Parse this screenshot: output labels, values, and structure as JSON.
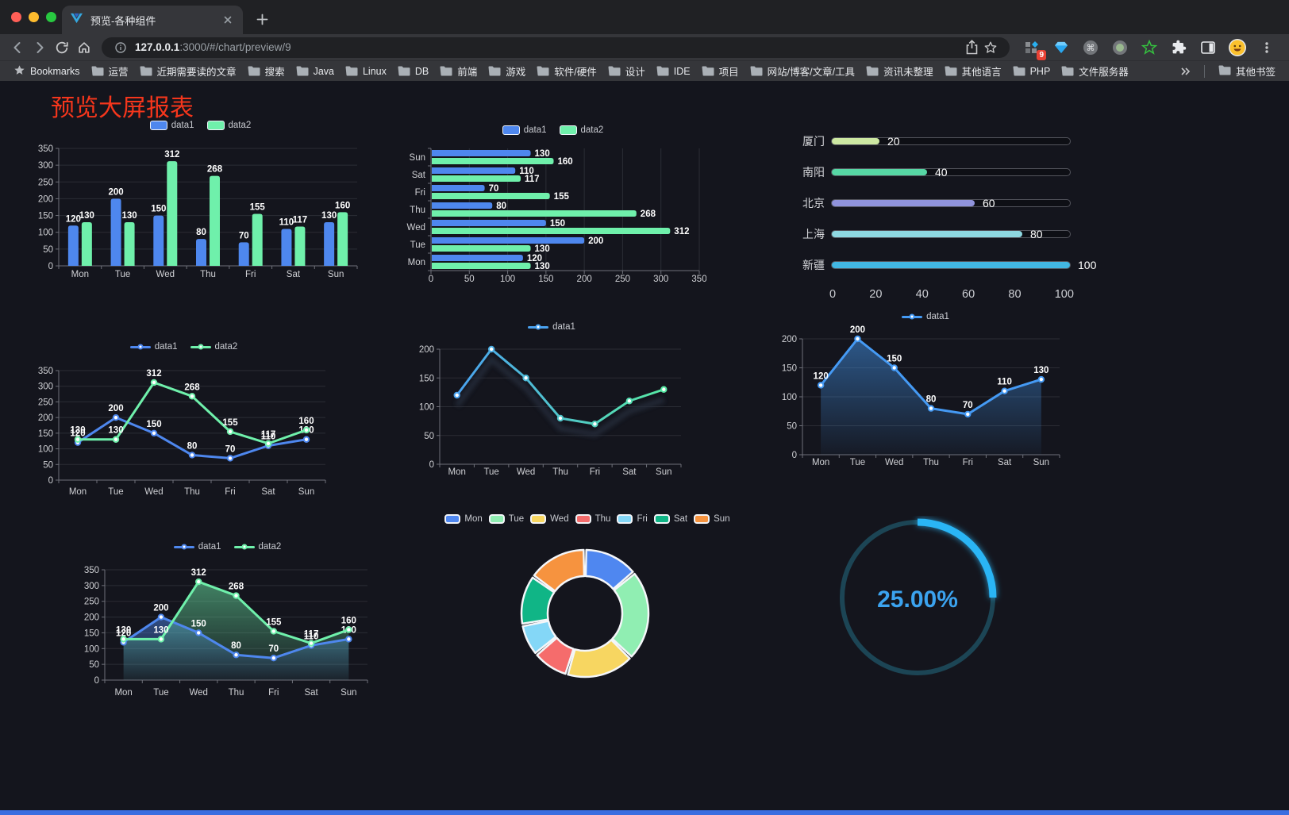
{
  "browser": {
    "tab": {
      "title": "预览-各种组件"
    },
    "url": {
      "host": "127.0.0.1",
      "rest": ":3000/#/chart/preview/9"
    },
    "extension_badge": "9",
    "bookmarks": {
      "label": "Bookmarks",
      "folders": [
        "运营",
        "近期需要读的文章",
        "搜索",
        "Java",
        "Linux",
        "DB",
        "前端",
        "游戏",
        "软件/硬件",
        "设计",
        "IDE",
        "项目",
        "网站/博客/文章/工具",
        "资讯未整理",
        "其他语言",
        "PHP",
        "文件服务器"
      ],
      "other": "其他书签"
    }
  },
  "page": {
    "title": "预览大屏报表",
    "title_color": "#f5361c",
    "background": "#14151d"
  },
  "chart_data": [
    {
      "id": "bar-vertical",
      "type": "bar",
      "categories": [
        "Mon",
        "Tue",
        "Wed",
        "Thu",
        "Fri",
        "Sat",
        "Sun"
      ],
      "series": [
        {
          "name": "data1",
          "color": "#4e87ee",
          "values": [
            120,
            200,
            150,
            80,
            70,
            110,
            130
          ]
        },
        {
          "name": "data2",
          "color": "#6ff0ab",
          "values": [
            130,
            130,
            312,
            268,
            155,
            117,
            160
          ]
        }
      ],
      "ylim": [
        0,
        350
      ],
      "ytick_step": 50,
      "legend_position": "top",
      "value_labels": true,
      "grid": true
    },
    {
      "id": "bar-horizontal",
      "type": "hbar",
      "categories": [
        "Mon",
        "Tue",
        "Wed",
        "Thu",
        "Fri",
        "Sat",
        "Sun"
      ],
      "series": [
        {
          "name": "data1",
          "color": "#4e87ee",
          "values": [
            120,
            200,
            150,
            80,
            70,
            110,
            130
          ]
        },
        {
          "name": "data2",
          "color": "#6ff0ab",
          "values": [
            130,
            130,
            312,
            268,
            155,
            117,
            160
          ]
        }
      ],
      "xlim": [
        0,
        350
      ],
      "xtick_step": 50,
      "legend_position": "top",
      "value_labels": true,
      "grid": true
    },
    {
      "id": "progress",
      "type": "progress",
      "items": [
        {
          "label": "厦门",
          "value": 20,
          "color": "#cde8a2"
        },
        {
          "label": "南阳",
          "value": 40,
          "color": "#57d7a5"
        },
        {
          "label": "北京",
          "value": 60,
          "color": "#9093dc"
        },
        {
          "label": "上海",
          "value": 80,
          "color": "#8ed8e1"
        },
        {
          "label": "新疆",
          "value": 100,
          "color": "#42b7e3"
        }
      ],
      "xlim": [
        0,
        100
      ],
      "xticks": [
        0,
        20,
        40,
        60,
        80,
        100
      ]
    },
    {
      "id": "line-basic",
      "type": "line",
      "categories": [
        "Mon",
        "Tue",
        "Wed",
        "Thu",
        "Fri",
        "Sat",
        "Sun"
      ],
      "series": [
        {
          "name": "data1",
          "color": "#4e87ee",
          "values": [
            120,
            200,
            150,
            80,
            70,
            110,
            130
          ]
        },
        {
          "name": "data2",
          "color": "#6ff0ab",
          "values": [
            130,
            130,
            312,
            268,
            155,
            117,
            160
          ]
        }
      ],
      "ylim": [
        0,
        350
      ],
      "ytick_step": 50,
      "legend_position": "top",
      "value_labels": true,
      "grid": true
    },
    {
      "id": "line-gradient",
      "type": "line",
      "categories": [
        "Mon",
        "Tue",
        "Wed",
        "Thu",
        "Fri",
        "Sat",
        "Sun"
      ],
      "series": [
        {
          "name": "data1",
          "color_start": "#4aa2f0",
          "color_end": "#57e9a4",
          "values": [
            120,
            200,
            150,
            80,
            70,
            110,
            130
          ]
        }
      ],
      "ylim": [
        0,
        200
      ],
      "ytick_step": 50,
      "legend_position": "top",
      "value_labels": false,
      "shadow": true,
      "grid": true
    },
    {
      "id": "line-area",
      "type": "line",
      "area": true,
      "categories": [
        "Mon",
        "Tue",
        "Wed",
        "Thu",
        "Fri",
        "Sat",
        "Sun"
      ],
      "series": [
        {
          "name": "data1",
          "color": "#459af4",
          "values": [
            120,
            200,
            150,
            80,
            70,
            110,
            130
          ]
        }
      ],
      "ylim": [
        0,
        200
      ],
      "ytick_step": 50,
      "legend_position": "top",
      "value_labels": true,
      "grid": true
    },
    {
      "id": "line-area-double",
      "type": "line",
      "area": true,
      "categories": [
        "Mon",
        "Tue",
        "Wed",
        "Thu",
        "Fri",
        "Sat",
        "Sun"
      ],
      "series": [
        {
          "name": "data1",
          "color": "#4e87ee",
          "values": [
            120,
            200,
            150,
            80,
            70,
            110,
            130
          ]
        },
        {
          "name": "data2",
          "color": "#6ff0ab",
          "values": [
            130,
            130,
            312,
            268,
            155,
            117,
            160
          ]
        }
      ],
      "ylim": [
        0,
        350
      ],
      "ytick_step": 50,
      "legend_position": "top",
      "value_labels": true,
      "grid": true
    },
    {
      "id": "doughnut",
      "type": "pie",
      "donut": true,
      "categories": [
        "Mon",
        "Tue",
        "Wed",
        "Thu",
        "Fri",
        "Sat",
        "Sun"
      ],
      "values": [
        120,
        200,
        150,
        80,
        70,
        110,
        130
      ],
      "colors": [
        "#4f87f0",
        "#90eeb2",
        "#f7d661",
        "#f56c6c",
        "#84d7f7",
        "#10b586",
        "#f6933f"
      ],
      "legend_position": "top"
    },
    {
      "id": "gauge",
      "type": "gauge",
      "value": 25,
      "display": "25.00%",
      "color": "#2ab5f5",
      "track_color": "#1c4555",
      "text_color": "#3ba3ef"
    }
  ]
}
